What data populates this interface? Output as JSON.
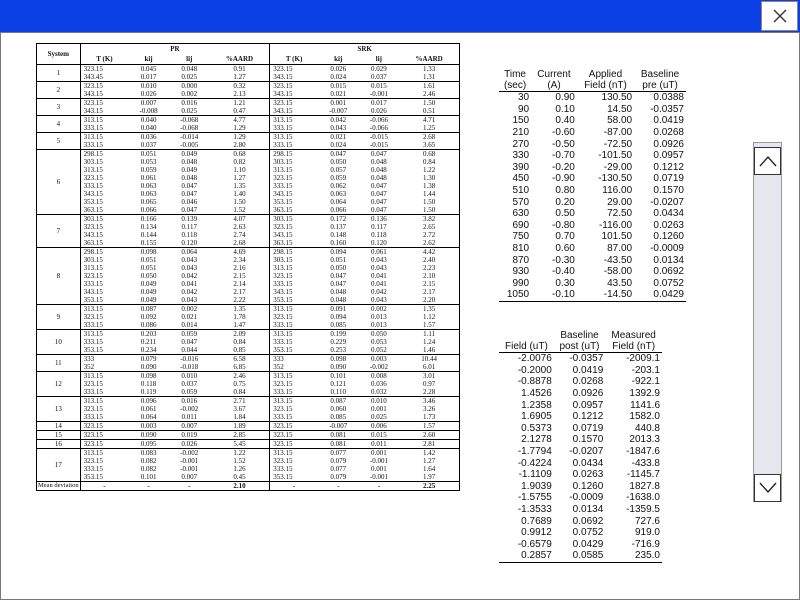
{
  "window": {
    "close_symbol": "✕",
    "titlebar_color": "#0a3fe6"
  },
  "srk_table": {
    "header": {
      "system": "System",
      "pr": "PR",
      "srk": "SRK",
      "cols": [
        "T (K)",
        "kij",
        "lij",
        "%AARD"
      ]
    },
    "groups": [
      {
        "system": "1",
        "rows": [
          [
            "323.15",
            "0.045",
            "0.048",
            "0.91",
            "323.15",
            "0.026",
            "0.029",
            "1.33"
          ],
          [
            "343.45",
            "0.017",
            "0.025",
            "1.27",
            "343.15",
            "0.024",
            "0.037",
            "1.31"
          ]
        ]
      },
      {
        "system": "2",
        "rows": [
          [
            "323.15",
            "0.010",
            "0.000",
            "0.32",
            "323.15",
            "0.015",
            "0.015",
            "1.61"
          ],
          [
            "343.15",
            "0.026",
            "0.002",
            "2.13",
            "343.15",
            "0.021",
            "-0.001",
            "2.46"
          ]
        ]
      },
      {
        "system": "3",
        "rows": [
          [
            "323.15",
            "0.007",
            "0.016",
            "1.21",
            "323.15",
            "0.001",
            "0.017",
            "1.50"
          ],
          [
            "343.15",
            "-0.008",
            "0.025",
            "0.47",
            "343.15",
            "-0.007",
            "0.026",
            "0.51"
          ]
        ]
      },
      {
        "system": "4",
        "rows": [
          [
            "313.15",
            "0.040",
            "-0.068",
            "4.77",
            "313.15",
            "0.042",
            "-0.066",
            "4.71"
          ],
          [
            "333.15",
            "0.040",
            "-0.068",
            "1.29",
            "333.15",
            "0.043",
            "-0.066",
            "1.25"
          ]
        ]
      },
      {
        "system": "5",
        "rows": [
          [
            "313.15",
            "0.036",
            "-0.014",
            "1.29",
            "313.15",
            "0.021",
            "-0.015",
            "2.68"
          ],
          [
            "333.15",
            "0.037",
            "-0.005",
            "2.80",
            "333.15",
            "0.024",
            "-0.015",
            "3.65"
          ]
        ]
      },
      {
        "system": "6",
        "rows": [
          [
            "298.15",
            "0.051",
            "0.049",
            "0.68",
            "298.15",
            "0.047",
            "0.047",
            "0.68"
          ],
          [
            "303.15",
            "0.053",
            "0.048",
            "0.82",
            "303.15",
            "0.050",
            "0.048",
            "0.84"
          ],
          [
            "313.15",
            "0.059",
            "0.049",
            "1.10",
            "313.15",
            "0.057",
            "0.048",
            "1.22"
          ],
          [
            "323.15",
            "0.061",
            "0.048",
            "1.27",
            "323.15",
            "0.059",
            "0.048",
            "1.30"
          ],
          [
            "333.15",
            "0.063",
            "0.047",
            "1.35",
            "333.15",
            "0.062",
            "0.047",
            "1.38"
          ],
          [
            "343.15",
            "0.063",
            "0.047",
            "1.40",
            "343.15",
            "0.063",
            "0.047",
            "1.44"
          ],
          [
            "353.15",
            "0.065",
            "0.046",
            "1.50",
            "353.15",
            "0.064",
            "0.047",
            "1.50"
          ],
          [
            "363.15",
            "0.066",
            "0.047",
            "1.52",
            "363.15",
            "0.066",
            "0.047",
            "1.50"
          ]
        ]
      },
      {
        "system": "7",
        "rows": [
          [
            "303.15",
            "0.166",
            "0.139",
            "4.07",
            "303.15",
            "0.172",
            "0.136",
            "3.82"
          ],
          [
            "323.15",
            "0.134",
            "0.117",
            "2.63",
            "323.15",
            "0.137",
            "0.117",
            "2.65"
          ],
          [
            "343.15",
            "0.144",
            "0.118",
            "2.74",
            "343.15",
            "0.148",
            "0.118",
            "2.72"
          ],
          [
            "363.15",
            "0.155",
            "0.120",
            "2.68",
            "363.15",
            "0.160",
            "0.120",
            "2.62"
          ]
        ]
      },
      {
        "system": "8",
        "rows": [
          [
            "298.15",
            "0.098",
            "0.064",
            "4.69",
            "298.15",
            "0.094",
            "0.061",
            "4.42"
          ],
          [
            "303.15",
            "0.051",
            "0.043",
            "2.34",
            "303.15",
            "0.051",
            "0.043",
            "2.40"
          ],
          [
            "313.15",
            "0.051",
            "0.043",
            "2.16",
            "313.15",
            "0.050",
            "0.043",
            "2.23"
          ],
          [
            "323.15",
            "0.050",
            "0.042",
            "2.15",
            "323.15",
            "0.047",
            "0.041",
            "2.10"
          ],
          [
            "333.15",
            "0.049",
            "0.041",
            "2.14",
            "333.15",
            "0.047",
            "0.041",
            "2.15"
          ],
          [
            "343.15",
            "0.049",
            "0.042",
            "2.17",
            "343.15",
            "0.048",
            "0.042",
            "2.17"
          ],
          [
            "353.15",
            "0.049",
            "0.043",
            "2.22",
            "353.15",
            "0.048",
            "0.043",
            "2.20"
          ]
        ]
      },
      {
        "system": "9",
        "rows": [
          [
            "313.15",
            "0.087",
            "0.002",
            "1.35",
            "313.15",
            "0.091",
            "0.002",
            "1.35"
          ],
          [
            "323.15",
            "0.092",
            "0.021",
            "1.78",
            "323.15",
            "0.094",
            "0.013",
            "1.12"
          ],
          [
            "333.15",
            "0.086",
            "0.014",
            "1.47",
            "333.15",
            "0.085",
            "0.013",
            "1.57"
          ]
        ]
      },
      {
        "system": "10",
        "rows": [
          [
            "313.15",
            "0.203",
            "0.059",
            "2.09",
            "313.15",
            "0.199",
            "0.050",
            "1.11"
          ],
          [
            "333.15",
            "0.211",
            "0.047",
            "0.84",
            "333.15",
            "0.229",
            "0.053",
            "1.24"
          ],
          [
            "353.15",
            "0.234",
            "0.044",
            "0.85",
            "353.15",
            "0.253",
            "0.052",
            "1.46"
          ]
        ]
      },
      {
        "system": "11",
        "rows": [
          [
            "333",
            "0.079",
            "-0.016",
            "6.58",
            "333",
            "0.098",
            "0.003",
            "10.44"
          ],
          [
            "352",
            "0.090",
            "-0.018",
            "6.85",
            "352",
            "0.090",
            "-0.002",
            "6.01"
          ]
        ]
      },
      {
        "system": "12",
        "rows": [
          [
            "313.15",
            "0.098",
            "0.010",
            "2.46",
            "313.15",
            "0.101",
            "0.008",
            "3.01"
          ],
          [
            "323.15",
            "0.118",
            "0.037",
            "0.75",
            "323.15",
            "0.121",
            "0.036",
            "0.97"
          ],
          [
            "333.15",
            "0.119",
            "0.059",
            "0.84",
            "333.15",
            "0.110",
            "0.032",
            "2.28"
          ]
        ]
      },
      {
        "system": "13",
        "rows": [
          [
            "313.15",
            "0.096",
            "0.016",
            "2.71",
            "313.15",
            "0.087",
            "0.010",
            "3.46"
          ],
          [
            "323.15",
            "0.061",
            "-0.002",
            "3.67",
            "323.15",
            "0.060",
            "0.001",
            "3.26"
          ],
          [
            "333.15",
            "0.064",
            "0.011",
            "1.84",
            "333.15",
            "0.085",
            "0.025",
            "1.73"
          ]
        ]
      },
      {
        "system": "14",
        "rows": [
          [
            "323.15",
            "0.003",
            "0.007",
            "1.89",
            "323.15",
            "-0.007",
            "0.006",
            "1.57"
          ]
        ]
      },
      {
        "system": "15",
        "rows": [
          [
            "323.15",
            "0.090",
            "0.019",
            "2.85",
            "323.15",
            "0.081",
            "0.015",
            "2.60"
          ]
        ]
      },
      {
        "system": "16",
        "rows": [
          [
            "323.15",
            "0.095",
            "0.026",
            "5.45",
            "323.15",
            "0.081",
            "0.011",
            "2.81"
          ]
        ]
      },
      {
        "system": "17",
        "rows": [
          [
            "313.15",
            "0.083",
            "-0.002",
            "1.22",
            "313.15",
            "0.077",
            "0.001",
            "1.42"
          ],
          [
            "323.15",
            "0.082",
            "-0.001",
            "1.52",
            "323.15",
            "0.079",
            "-0.001",
            "1.27"
          ],
          [
            "333.15",
            "0.082",
            "-0.001",
            "1.26",
            "333.15",
            "0.077",
            "0.001",
            "1.64"
          ],
          [
            "353.15",
            "0.101",
            "0.007",
            "0.45",
            "353.15",
            "0.079",
            "-0.001",
            "1.97"
          ]
        ]
      }
    ],
    "mean_row": {
      "label": "Mean deviation",
      "cells": [
        "-",
        "-",
        "-",
        "2.10",
        "-",
        "-",
        "-",
        "2.25"
      ]
    }
  },
  "table1": {
    "headers": [
      [
        "Time",
        "(sec)"
      ],
      [
        "Current",
        "(A)"
      ],
      [
        "Applied",
        "Field (nT)"
      ],
      [
        "Baseline",
        "pre (uT)"
      ]
    ],
    "rows": [
      [
        "30",
        "0.90",
        "130.50",
        "0.0388"
      ],
      [
        "90",
        "0.10",
        "14.50",
        "-0.0357"
      ],
      [
        "150",
        "0.40",
        "58.00",
        "0.0419"
      ],
      [
        "210",
        "-0.60",
        "-87.00",
        "0.0268"
      ],
      [
        "270",
        "-0.50",
        "-72.50",
        "0.0926"
      ],
      [
        "330",
        "-0.70",
        "-101.50",
        "0.0957"
      ],
      [
        "390",
        "-0.20",
        "-29.00",
        "0.1212"
      ],
      [
        "450",
        "-0.90",
        "-130.50",
        "0.0719"
      ],
      [
        "510",
        "0.80",
        "116.00",
        "0.1570"
      ],
      [
        "570",
        "0.20",
        "29.00",
        "-0.0207"
      ],
      [
        "630",
        "0.50",
        "72.50",
        "0.0434"
      ],
      [
        "690",
        "-0.80",
        "-116.00",
        "0.0263"
      ],
      [
        "750",
        "0.70",
        "101.50",
        "0.1260"
      ],
      [
        "810",
        "0.60",
        "87.00",
        "-0.0009"
      ],
      [
        "870",
        "-0.30",
        "-43.50",
        "0.0134"
      ],
      [
        "930",
        "-0.40",
        "-58.00",
        "0.0692"
      ],
      [
        "990",
        "0.30",
        "43.50",
        "0.0752"
      ],
      [
        "1050",
        "-0.10",
        "-14.50",
        "0.0429"
      ]
    ]
  },
  "table2": {
    "headers": [
      [
        "",
        "Field (uT)"
      ],
      [
        "Baseline",
        "post (uT)"
      ],
      [
        "Measured",
        "Field (nT)"
      ]
    ],
    "rows": [
      [
        "-2.0076",
        "-0.0357",
        "-2009.1"
      ],
      [
        "-0.2000",
        "0.0419",
        "-203.1"
      ],
      [
        "-0.8878",
        "0.0268",
        "-922.1"
      ],
      [
        "1.4526",
        "0.0926",
        "1392.9"
      ],
      [
        "1.2358",
        "0.0957",
        "1141.6"
      ],
      [
        "1.6905",
        "0.1212",
        "1582.0"
      ],
      [
        "0.5373",
        "0.0719",
        "440.8"
      ],
      [
        "2.1278",
        "0.1570",
        "2013.3"
      ],
      [
        "-1.7794",
        "-0.0207",
        "-1847.6"
      ],
      [
        "-0.4224",
        "0.0434",
        "-433.8"
      ],
      [
        "-1.1109",
        "0.0263",
        "-1145.7"
      ],
      [
        "1.9039",
        "0.1260",
        "1827.8"
      ],
      [
        "-1.5755",
        "-0.0009",
        "-1638.0"
      ],
      [
        "-1.3533",
        "0.0134",
        "-1359.5"
      ],
      [
        "0.7689",
        "0.0692",
        "727.6"
      ],
      [
        "0.9912",
        "0.0752",
        "919.0"
      ],
      [
        "-0.6579",
        "0.0429",
        "-716.9"
      ],
      [
        "0.2857",
        "0.0585",
        "235.0"
      ]
    ]
  },
  "scrollbar": {
    "up_icon": "chevron-up-icon",
    "down_icon": "chevron-down-icon"
  }
}
